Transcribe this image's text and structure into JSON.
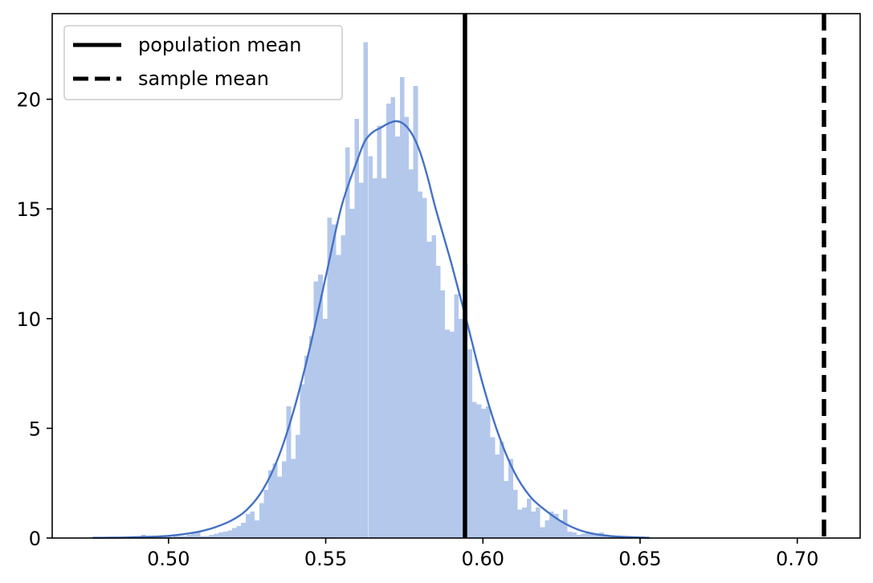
{
  "chart_data": {
    "type": "bar",
    "title": "",
    "xlabel": "",
    "ylabel": "",
    "xlim": [
      0.463,
      0.72
    ],
    "ylim": [
      0,
      23.9
    ],
    "xticks": [
      {
        "value": 0.5,
        "label": "0.50"
      },
      {
        "value": 0.55,
        "label": "0.55"
      },
      {
        "value": 0.6,
        "label": "0.60"
      },
      {
        "value": 0.65,
        "label": "0.65"
      },
      {
        "value": 0.7,
        "label": "0.70"
      }
    ],
    "yticks": [
      {
        "value": 0,
        "label": "0"
      },
      {
        "value": 5,
        "label": "5"
      },
      {
        "value": 10,
        "label": "10"
      },
      {
        "value": 15,
        "label": "15"
      },
      {
        "value": 20,
        "label": "20"
      }
    ],
    "grid": false,
    "legend_position": "upper-left",
    "colors": {
      "histogram": "#b4c8ec",
      "kde": "#4472c4",
      "reference_lines": "#000000",
      "axes": "#000000",
      "background": "#ffffff"
    },
    "histogram": {
      "bin_start": 0.4755,
      "bin_width": 0.001442,
      "density_values": [
        0.05,
        0.0,
        0.0,
        0.0,
        0.0,
        0.0,
        0.0,
        0.0,
        0.0,
        0.1,
        0.0,
        0.15,
        0.0,
        0.0,
        0.0,
        0.05,
        0.05,
        0.05,
        0.1,
        0.1,
        0.1,
        0.15,
        0.2,
        0.3,
        0.1,
        0.1,
        0.15,
        0.2,
        0.25,
        0.3,
        0.35,
        0.45,
        0.55,
        0.7,
        1.1,
        1.2,
        0.8,
        1.6,
        2.2,
        3.1,
        3.4,
        2.8,
        3.5,
        6.0,
        3.6,
        4.7,
        7.0,
        8.3,
        9.2,
        11.7,
        12.0,
        10.0,
        14.6,
        14.3,
        12.9,
        13.8,
        17.8,
        15.0,
        19.1,
        16.2,
        22.6,
        17.4,
        16.4,
        18.8,
        16.4,
        19.8,
        20.1,
        18.3,
        21.0,
        19.2,
        16.8,
        20.6,
        15.8,
        15.5,
        13.5,
        13.8,
        12.4,
        11.3,
        9.5,
        9.4,
        11.1,
        10.0,
        12.5,
        8.6,
        6.2,
        6.1,
        5.9,
        6.0,
        4.6,
        3.8,
        4.4,
        2.6,
        3.6,
        2.2,
        1.3,
        1.4,
        1.8,
        1.2,
        1.4,
        0.5,
        0.8,
        1.2,
        1.1,
        0.8,
        1.3,
        0.3,
        0.25,
        0.15,
        0.2,
        0.25,
        0.2,
        0.2,
        0.25,
        0.1,
        0.05,
        0.05,
        0.05,
        0.05
      ]
    },
    "series": [
      {
        "name": "kde",
        "x": [
          0.476,
          0.485,
          0.49,
          0.495,
          0.5,
          0.505,
          0.51,
          0.515,
          0.52,
          0.525,
          0.53,
          0.535,
          0.54,
          0.545,
          0.55,
          0.555,
          0.56,
          0.5625,
          0.565,
          0.5675,
          0.57,
          0.5725,
          0.575,
          0.5775,
          0.58,
          0.5825,
          0.585,
          0.59,
          0.595,
          0.6,
          0.605,
          0.61,
          0.615,
          0.62,
          0.625,
          0.63,
          0.635,
          0.64,
          0.645,
          0.653
        ],
        "y": [
          0.01,
          0.02,
          0.04,
          0.06,
          0.1,
          0.18,
          0.3,
          0.5,
          0.8,
          1.3,
          2.2,
          3.7,
          5.9,
          8.7,
          11.9,
          15.1,
          17.2,
          18.1,
          18.5,
          18.7,
          18.9,
          19.0,
          18.85,
          18.4,
          17.6,
          16.4,
          15.0,
          12.5,
          9.8,
          7.0,
          4.7,
          3.0,
          1.9,
          1.25,
          0.75,
          0.4,
          0.2,
          0.1,
          0.05,
          0.01
        ]
      }
    ],
    "reference_lines": [
      {
        "name": "population mean",
        "x": 0.5943,
        "style": "solid"
      },
      {
        "name": "sample mean",
        "x": 0.7085,
        "style": "dashed"
      }
    ]
  }
}
